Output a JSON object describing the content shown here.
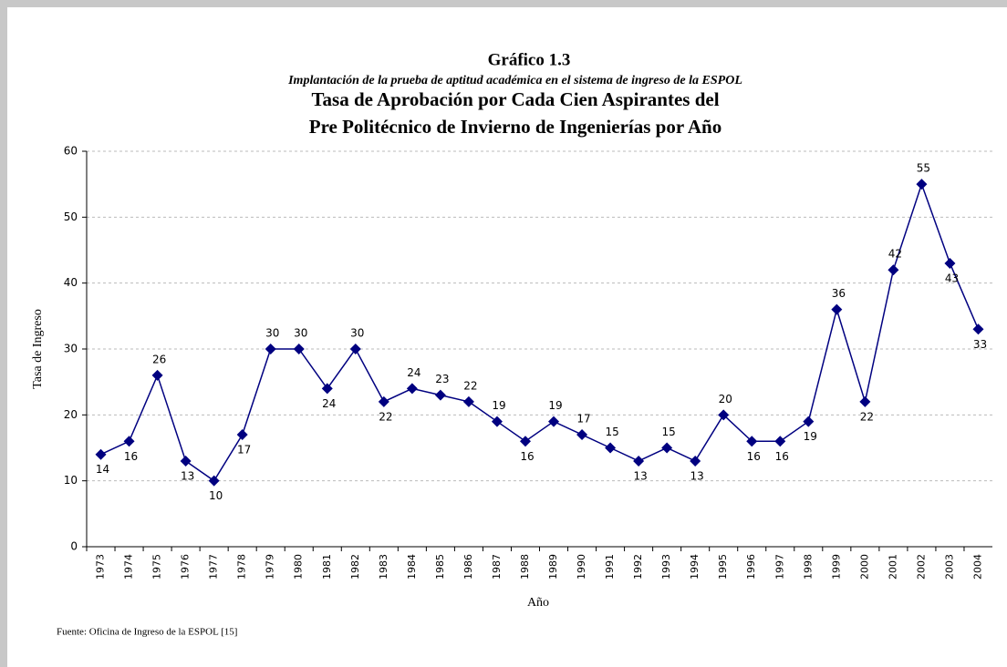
{
  "chart_data": {
    "type": "line",
    "title": "Gráfico 1.3",
    "subtitle": "Implantación de la prueba de aptitud académica en el sistema de ingreso de la ESPOL",
    "title_lines": [
      "Tasa de Aprobación por Cada Cien Aspirantes del",
      "Pre Politécnico de Invierno  de Ingenierías por Año"
    ],
    "y_label": "Tasa de Ingreso",
    "x_label": "Año",
    "source": "Fuente: Oficina de Ingreso de la ESPOL [15]",
    "categories": [
      "1973",
      "1974",
      "1975",
      "1976",
      "1977",
      "1978",
      "1979",
      "1980",
      "1981",
      "1982",
      "1983",
      "1984",
      "1985",
      "1986",
      "1987",
      "1988",
      "1989",
      "1990",
      "1991",
      "1992",
      "1993",
      "1994",
      "1995",
      "1996",
      "1997",
      "1998",
      "1999",
      "2000",
      "2001",
      "2002",
      "2003",
      "2004"
    ],
    "series": [
      {
        "name": "Tasa de Ingreso",
        "color": "#000080",
        "values": [
          14,
          16,
          26,
          13,
          10,
          17,
          30,
          30,
          24,
          30,
          22,
          24,
          23,
          22,
          19,
          16,
          19,
          17,
          15,
          13,
          15,
          13,
          20,
          16,
          16,
          19,
          36,
          22,
          42,
          55,
          43,
          33
        ]
      }
    ],
    "ylim": [
      0,
      60
    ],
    "yticks": [
      0,
      10,
      20,
      30,
      40,
      50,
      60
    ],
    "grid": true
  }
}
